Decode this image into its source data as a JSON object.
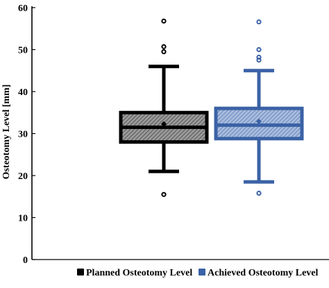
{
  "chart_data": {
    "type": "box",
    "ylabel": "Osteotomy Level [mm]",
    "xlabel": "",
    "ylim": [
      0,
      60
    ],
    "yticks": [
      "0",
      "10",
      "20",
      "30",
      "40",
      "50",
      "60"
    ],
    "grid": false,
    "legend_position": "bottom",
    "series": [
      {
        "name": "Planned Osteotomy Level",
        "color": "#000000",
        "fill": "#777777",
        "whisker_low": 21,
        "q1": 28,
        "median": 31.5,
        "q3": 35,
        "whisker_high": 46,
        "mean": 32.3,
        "outliers": [
          15.5,
          49.5,
          50.7,
          56.8
        ]
      },
      {
        "name": "Achieved Osteotomy Level",
        "color": "#3B62A6",
        "fill": "#8DA4CC",
        "whisker_low": 18.5,
        "q1": 28.8,
        "median": 32,
        "q3": 36,
        "whisker_high": 45,
        "mean": 32.9,
        "outliers": [
          15.8,
          47.5,
          48.2,
          50,
          56.6
        ]
      }
    ]
  }
}
